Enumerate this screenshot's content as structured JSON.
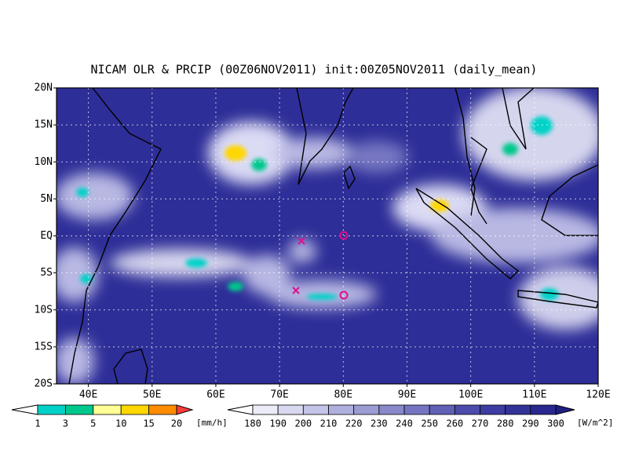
{
  "title": "NICAM OLR & PRCIP (00Z06NOV2011) init:00Z05NOV2011 (daily_mean)",
  "map": {
    "lat_labels": [
      "20N",
      "15N",
      "10N",
      "5N",
      "EQ",
      "5S",
      "10S",
      "15S",
      "20S"
    ],
    "lon_labels": [
      "40E",
      "50E",
      "60E",
      "70E",
      "80E",
      "90E",
      "100E",
      "110E",
      "120E"
    ]
  },
  "precip_legend": {
    "levels": [
      1,
      3,
      5,
      10,
      15,
      20
    ],
    "unit": "[mm/h]",
    "colors": [
      "#ffffff",
      "#00d2c8",
      "#00c88c",
      "#ffff96",
      "#ffd700",
      "#ff8c00",
      "#ff3c3c"
    ]
  },
  "olr_legend": {
    "levels": [
      180,
      190,
      200,
      210,
      220,
      230,
      240,
      250,
      260,
      270,
      280,
      290,
      300
    ],
    "unit": "[W/m^2]",
    "colors": [
      "#ffffff",
      "#ececf8",
      "#d8d8f0",
      "#c4c4e8",
      "#b0b0de",
      "#9c9cd4",
      "#8888ca",
      "#7474c0",
      "#6060b6",
      "#4c4cac",
      "#3c3ca2",
      "#323298",
      "#28288e",
      "#1e1e82"
    ]
  }
}
